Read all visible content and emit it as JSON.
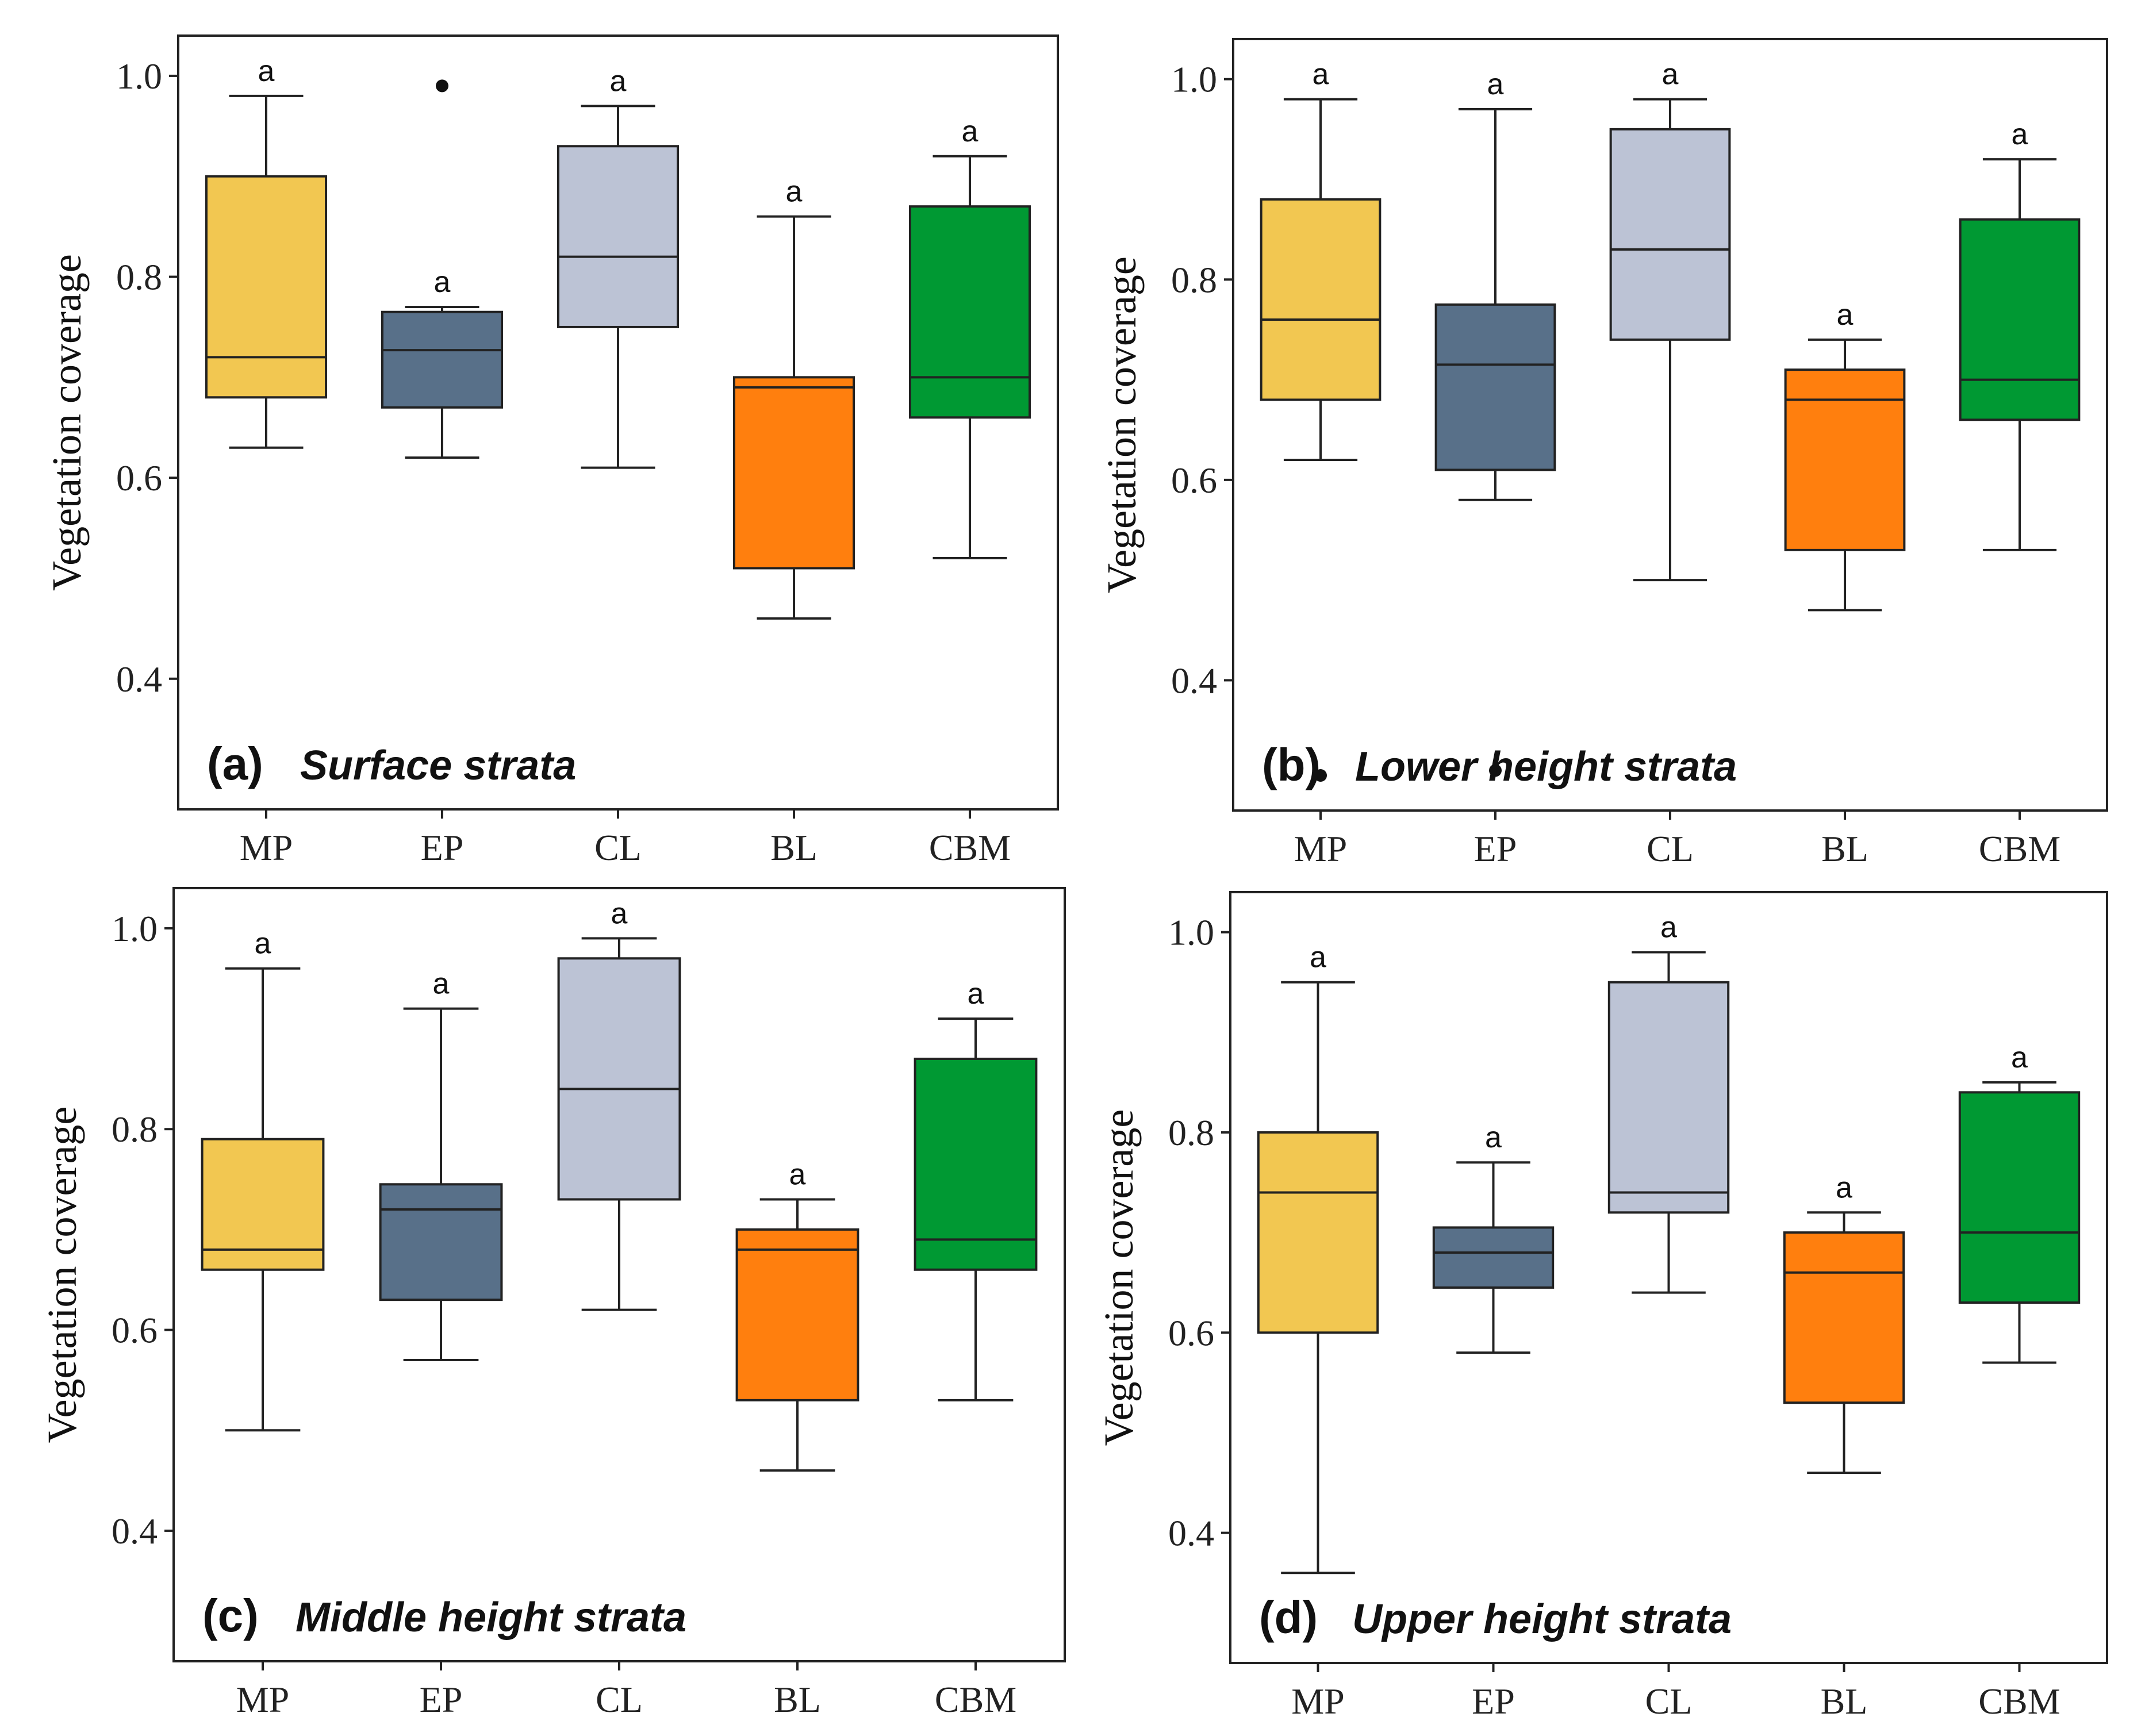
{
  "chart_data": [
    {
      "type": "box",
      "panel_label": "(a)",
      "title": "Surface strata",
      "xlabel": "",
      "ylabel": "Vegetation coverage",
      "ylim": [
        0.27,
        1.04
      ],
      "yticks": [
        0.4,
        0.6,
        0.8,
        1.0
      ],
      "ytick_labels": [
        "0.4",
        "0.6",
        "0.8",
        "1.0"
      ],
      "categories": [
        "MP",
        "EP",
        "CL",
        "BL",
        "CBM"
      ],
      "boxes": [
        {
          "name": "MP",
          "whisker_low": 0.63,
          "q1": 0.68,
          "median": 0.72,
          "q3": 0.9,
          "whisker_high": 0.98,
          "outliers": [],
          "sig": "a",
          "color": "#F2C751"
        },
        {
          "name": "EP",
          "whisker_low": 0.62,
          "q1": 0.67,
          "median": 0.727,
          "q3": 0.765,
          "whisker_high": 0.77,
          "outliers": [
            0.99
          ],
          "sig": "a",
          "color": "#587089"
        },
        {
          "name": "CL",
          "whisker_low": 0.61,
          "q1": 0.75,
          "median": 0.82,
          "q3": 0.93,
          "whisker_high": 0.97,
          "outliers": [],
          "sig": "a",
          "color": "#BCC3D5"
        },
        {
          "name": "BL",
          "whisker_low": 0.46,
          "q1": 0.51,
          "median": 0.69,
          "q3": 0.7,
          "whisker_high": 0.86,
          "outliers": [],
          "sig": "a",
          "color": "#FF7F0E"
        },
        {
          "name": "CBM",
          "whisker_low": 0.52,
          "q1": 0.66,
          "median": 0.7,
          "q3": 0.87,
          "whisker_high": 0.92,
          "outliers": [],
          "sig": "a",
          "color": "#009933"
        }
      ]
    },
    {
      "type": "box",
      "panel_label": "(b)",
      "title": "Lower height strata",
      "xlabel": "",
      "ylabel": "Vegetation coverage",
      "ylim": [
        0.27,
        1.04
      ],
      "yticks": [
        0.4,
        0.6,
        0.8,
        1.0
      ],
      "ytick_labels": [
        "0.4",
        "0.6",
        "0.8",
        "1.0"
      ],
      "categories": [
        "MP",
        "EP",
        "CL",
        "BL",
        "CBM"
      ],
      "boxes": [
        {
          "name": "MP",
          "whisker_low": 0.62,
          "q1": 0.68,
          "median": 0.76,
          "q3": 0.88,
          "whisker_high": 0.98,
          "outliers": [
            0.305
          ],
          "sig": "a",
          "color": "#F2C751"
        },
        {
          "name": "EP",
          "whisker_low": 0.58,
          "q1": 0.61,
          "median": 0.715,
          "q3": 0.775,
          "whisker_high": 0.97,
          "outliers": [
            0.31
          ],
          "sig": "a",
          "color": "#587089"
        },
        {
          "name": "CL",
          "whisker_low": 0.5,
          "q1": 0.74,
          "median": 0.83,
          "q3": 0.95,
          "whisker_high": 0.98,
          "outliers": [],
          "sig": "a",
          "color": "#BCC3D5"
        },
        {
          "name": "BL",
          "whisker_low": 0.47,
          "q1": 0.53,
          "median": 0.68,
          "q3": 0.71,
          "whisker_high": 0.74,
          "outliers": [],
          "sig": "a",
          "color": "#FF7F0E"
        },
        {
          "name": "CBM",
          "whisker_low": 0.53,
          "q1": 0.66,
          "median": 0.7,
          "q3": 0.86,
          "whisker_high": 0.92,
          "outliers": [],
          "sig": "a",
          "color": "#009933"
        }
      ]
    },
    {
      "type": "box",
      "panel_label": "(c)",
      "title": "Middle height strata",
      "xlabel": "",
      "ylabel": "Vegetation coverage",
      "ylim": [
        0.27,
        1.04
      ],
      "yticks": [
        0.4,
        0.6,
        0.8,
        1.0
      ],
      "ytick_labels": [
        "0.4",
        "0.6",
        "0.8",
        "1.0"
      ],
      "categories": [
        "MP",
        "EP",
        "CL",
        "BL",
        "CBM"
      ],
      "boxes": [
        {
          "name": "MP",
          "whisker_low": 0.5,
          "q1": 0.66,
          "median": 0.68,
          "q3": 0.79,
          "whisker_high": 0.96,
          "outliers": [],
          "sig": "a",
          "color": "#F2C751"
        },
        {
          "name": "EP",
          "whisker_low": 0.57,
          "q1": 0.63,
          "median": 0.72,
          "q3": 0.745,
          "whisker_high": 0.92,
          "outliers": [],
          "sig": "a",
          "color": "#587089"
        },
        {
          "name": "CL",
          "whisker_low": 0.62,
          "q1": 0.73,
          "median": 0.84,
          "q3": 0.97,
          "whisker_high": 0.99,
          "outliers": [],
          "sig": "a",
          "color": "#BCC3D5"
        },
        {
          "name": "BL",
          "whisker_low": 0.46,
          "q1": 0.53,
          "median": 0.68,
          "q3": 0.7,
          "whisker_high": 0.73,
          "outliers": [],
          "sig": "a",
          "color": "#FF7F0E"
        },
        {
          "name": "CBM",
          "whisker_low": 0.53,
          "q1": 0.66,
          "median": 0.69,
          "q3": 0.87,
          "whisker_high": 0.91,
          "outliers": [],
          "sig": "a",
          "color": "#009933"
        }
      ]
    },
    {
      "type": "box",
      "panel_label": "(d)",
      "title": "Upper height strata",
      "xlabel": "",
      "ylabel": "Vegetation coverage",
      "ylim": [
        0.27,
        1.04
      ],
      "yticks": [
        0.4,
        0.6,
        0.8,
        1.0
      ],
      "ytick_labels": [
        "0.4",
        "0.6",
        "0.8",
        "1.0"
      ],
      "categories": [
        "MP",
        "EP",
        "CL",
        "BL",
        "CBM"
      ],
      "boxes": [
        {
          "name": "MP",
          "whisker_low": 0.36,
          "q1": 0.6,
          "median": 0.74,
          "q3": 0.8,
          "whisker_high": 0.95,
          "outliers": [],
          "sig": "a",
          "color": "#F2C751"
        },
        {
          "name": "EP",
          "whisker_low": 0.58,
          "q1": 0.645,
          "median": 0.68,
          "q3": 0.705,
          "whisker_high": 0.77,
          "outliers": [],
          "sig": "a",
          "color": "#587089"
        },
        {
          "name": "CL",
          "whisker_low": 0.64,
          "q1": 0.72,
          "median": 0.74,
          "q3": 0.95,
          "whisker_high": 0.98,
          "outliers": [],
          "sig": "a",
          "color": "#BCC3D5"
        },
        {
          "name": "BL",
          "whisker_low": 0.46,
          "q1": 0.53,
          "median": 0.66,
          "q3": 0.7,
          "whisker_high": 0.72,
          "outliers": [],
          "sig": "a",
          "color": "#FF7F0E"
        },
        {
          "name": "CBM",
          "whisker_low": 0.57,
          "q1": 0.63,
          "median": 0.7,
          "q3": 0.84,
          "whisker_high": 0.85,
          "outliers": [],
          "sig": "a",
          "color": "#009933"
        }
      ]
    }
  ]
}
